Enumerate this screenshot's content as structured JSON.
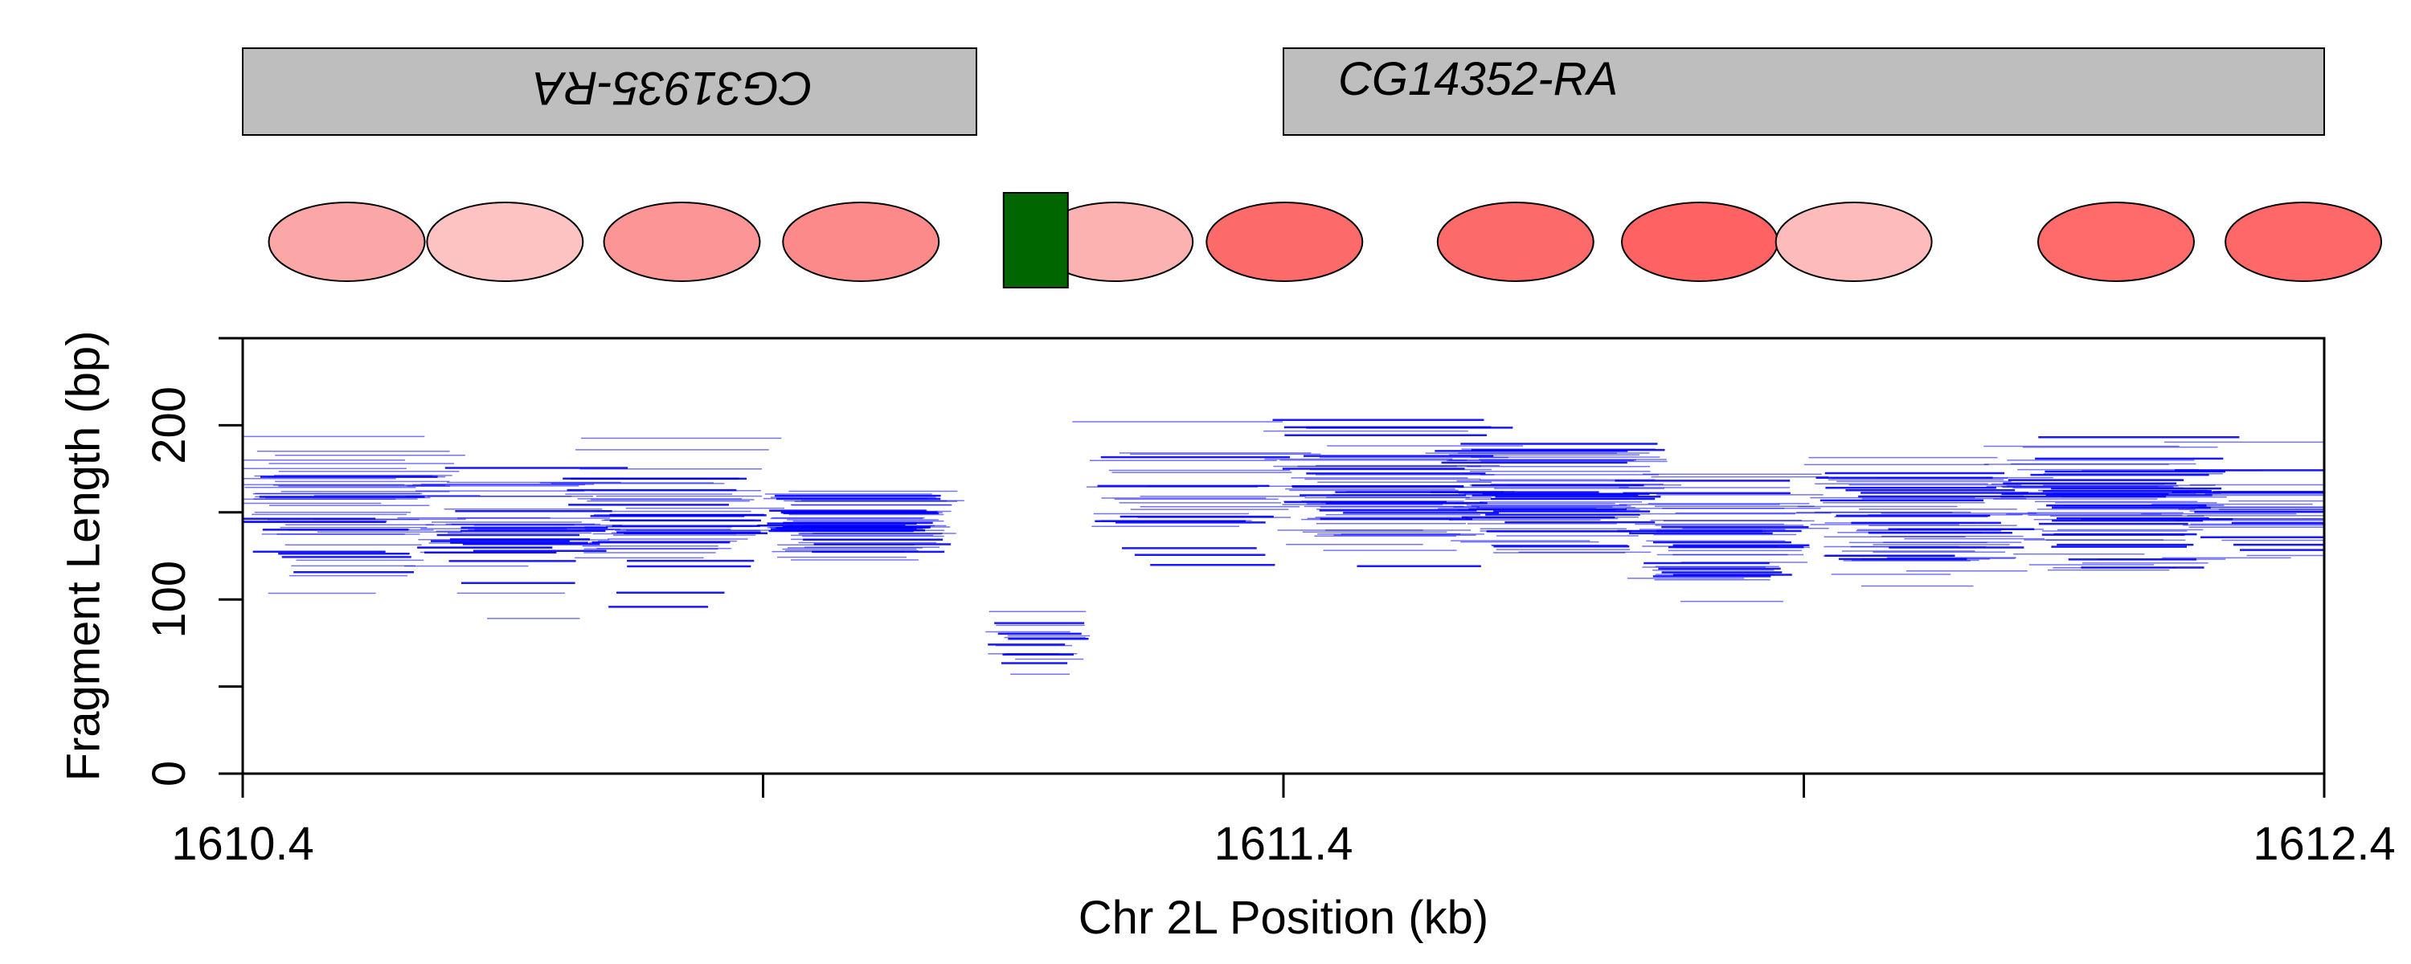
{
  "chart_data": {
    "type": "scatter",
    "xlabel": "Chr 2L Position (kb)",
    "ylabel": "Fragment Length (bp)",
    "xlim": [
      1610.4,
      1612.4
    ],
    "ylim": [
      0,
      250
    ],
    "x_ticks": [
      1610.4,
      1610.9,
      1611.4,
      1611.9,
      1612.4
    ],
    "x_tick_labels": [
      "1610.4",
      "",
      "1611.4",
      "",
      "1612.4"
    ],
    "y_ticks": [
      0,
      50,
      100,
      150,
      200,
      250
    ],
    "y_tick_labels": [
      "0",
      "",
      "100",
      "",
      "200",
      ""
    ],
    "grid": false,
    "genes": [
      {
        "name": "CG31935-RA",
        "start": 1610.4,
        "end": 1611.105,
        "strand": "-"
      },
      {
        "name": "CG14352-RA",
        "start": 1611.4,
        "end": 1612.4,
        "strand": "+"
      }
    ],
    "nucleosomes": [
      {
        "center": 1610.5,
        "color": "#fca7a7"
      },
      {
        "center": 1610.652,
        "color": "#fdc2c2"
      },
      {
        "center": 1610.822,
        "color": "#fc9595"
      },
      {
        "center": 1610.994,
        "color": "#fc8a8a"
      },
      {
        "center": 1611.623,
        "color": "#fc6a6a"
      },
      {
        "center": 1611.8,
        "color": "#ff6262"
      },
      {
        "center": 1611.948,
        "color": "#fdbbbb"
      },
      {
        "center": 1612.2,
        "color": "#ff6a6a"
      },
      {
        "center": 1612.38,
        "color": "#ff6868"
      },
      {
        "center": 1611.238,
        "color": "#fdb2b2"
      },
      {
        "center": 1611.401,
        "color": "#fc6a6a"
      }
    ],
    "tf_sites": [
      {
        "center": 1611.162,
        "color": "#006600"
      }
    ],
    "fragment_clusters": [
      {
        "center": 1610.5,
        "length": 150,
        "spread_x": 0.032,
        "spread_y": 30,
        "count": 52
      },
      {
        "center": 1610.658,
        "length": 142,
        "spread_x": 0.03,
        "spread_y": 24,
        "count": 42
      },
      {
        "center": 1610.81,
        "length": 148,
        "spread_x": 0.026,
        "spread_y": 26,
        "count": 48
      },
      {
        "center": 1610.99,
        "length": 145,
        "spread_x": 0.018,
        "spread_y": 16,
        "count": 62
      },
      {
        "center": 1611.16,
        "length": 78,
        "spread_x": 0.012,
        "spread_y": 14,
        "count": 16
      },
      {
        "center": 1611.31,
        "length": 165,
        "spread_x": 0.025,
        "spread_y": 32,
        "count": 26
      },
      {
        "center": 1611.5,
        "length": 155,
        "spread_x": 0.024,
        "spread_y": 30,
        "count": 58
      },
      {
        "center": 1611.66,
        "length": 160,
        "spread_x": 0.026,
        "spread_y": 26,
        "count": 62
      },
      {
        "center": 1611.82,
        "length": 135,
        "spread_x": 0.024,
        "spread_y": 26,
        "count": 48
      },
      {
        "center": 1612.02,
        "length": 145,
        "spread_x": 0.03,
        "spread_y": 26,
        "count": 58
      },
      {
        "center": 1612.2,
        "length": 155,
        "spread_x": 0.034,
        "spread_y": 26,
        "count": 64
      },
      {
        "center": 1612.35,
        "length": 150,
        "spread_x": 0.03,
        "spread_y": 24,
        "count": 30
      }
    ],
    "fragment_color": "#0000ff"
  }
}
